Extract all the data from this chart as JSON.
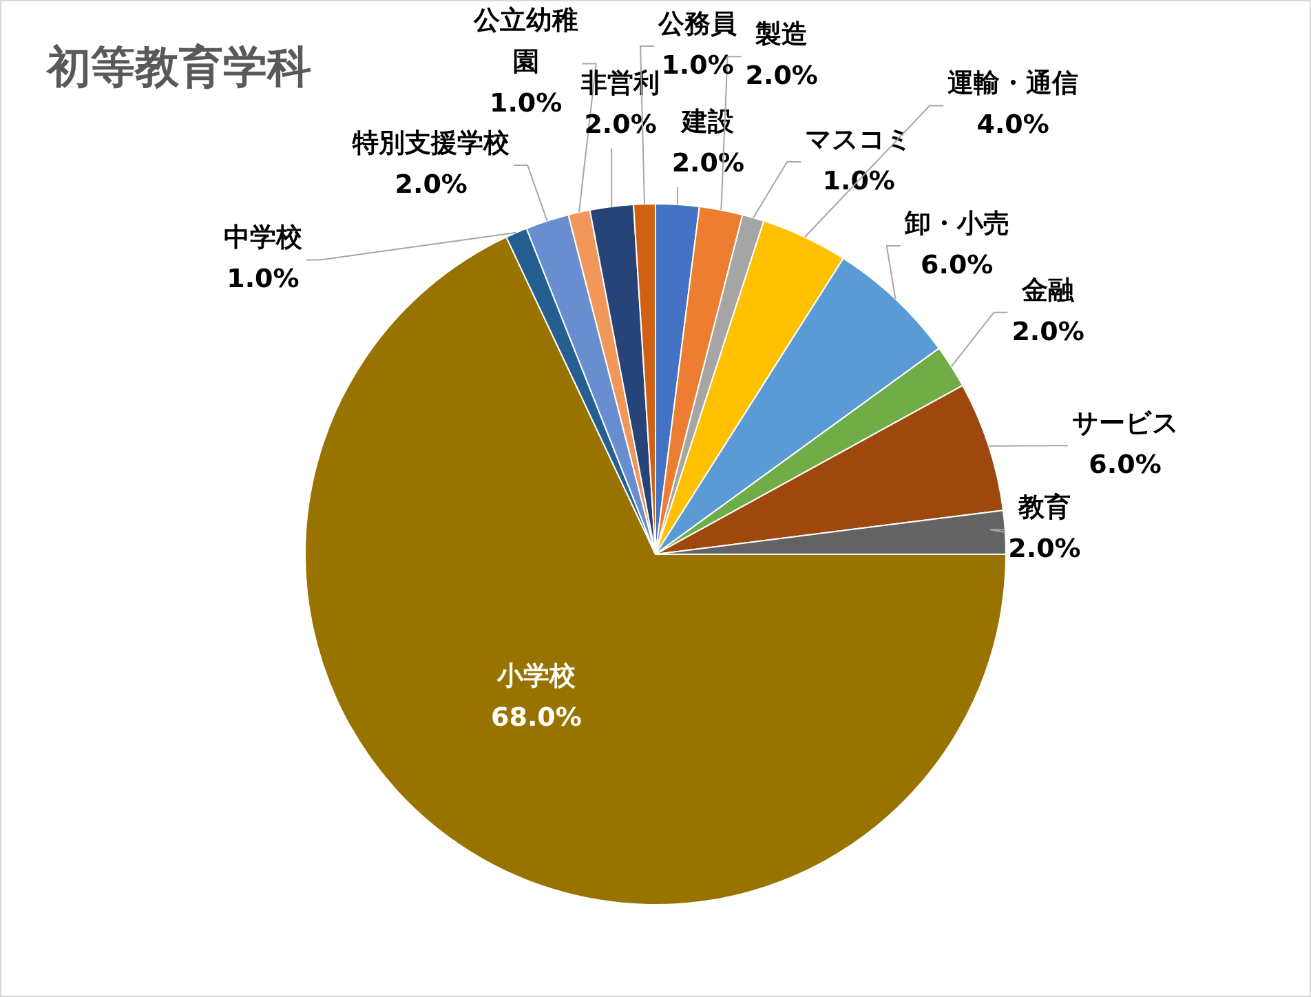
{
  "chart_data": {
    "type": "pie",
    "title": "初等教育学科",
    "categories": [
      "建設",
      "製造",
      "マスコミ",
      "運輸・通信",
      "卸・小売",
      "金融",
      "サービス",
      "教育",
      "小学校",
      "中学校",
      "特別支援学校",
      "公立幼稚園",
      "非営利",
      "公務員"
    ],
    "values": [
      2,
      2,
      1,
      4,
      6,
      2,
      6,
      2,
      68,
      1,
      2,
      1,
      2,
      1
    ],
    "value_labels": [
      "2.0%",
      "2.0%",
      "1.0%",
      "4.0%",
      "6.0%",
      "2.0%",
      "6.0%",
      "2.0%",
      "68.0%",
      "1.0%",
      "2.0%",
      "1.0%",
      "2.0%",
      "1.0%"
    ],
    "colors": [
      "#4472c4",
      "#ed7d31",
      "#a5a5a5",
      "#ffc000",
      "#5b9bd5",
      "#70ad47",
      "#9e480e",
      "#636363",
      "#997300",
      "#255e91",
      "#698ed0",
      "#f1975a",
      "#264478",
      "#d26012"
    ],
    "legend": false
  }
}
